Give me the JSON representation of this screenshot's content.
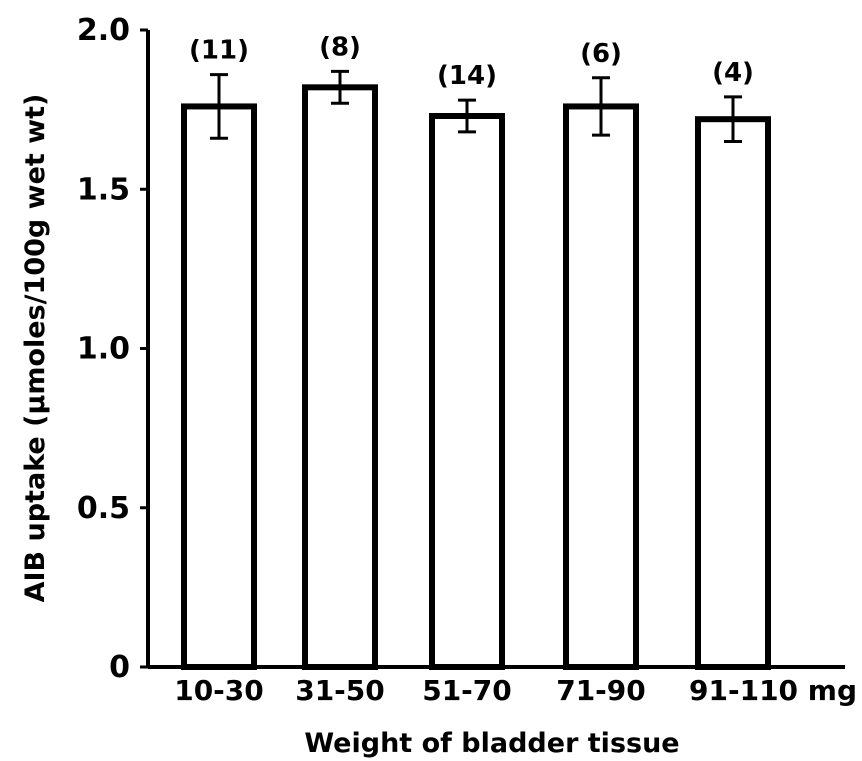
{
  "chart_data": {
    "type": "bar",
    "categories": [
      "10-30",
      "31-50",
      "51-70",
      "71-90",
      "91-110 mg"
    ],
    "series": [
      {
        "values": [
          1.76,
          1.82,
          1.73,
          1.76,
          1.72
        ],
        "error": [
          0.1,
          0.05,
          0.05,
          0.09,
          0.07
        ],
        "n_labels": [
          "(11)",
          "(8)",
          "(14)",
          "(6)",
          "(4)"
        ]
      }
    ],
    "xlabel": "Weight of bladder tissue",
    "ylabel": "AIB uptake (μmoles/100g wet wt)",
    "ylim": [
      0,
      2.0
    ],
    "yticks": [
      0,
      0.5,
      1.0,
      1.5,
      2.0
    ],
    "ytick_labels": [
      "0",
      "0.5",
      "1.0",
      "1.5",
      "2.0"
    ],
    "grid": false,
    "colors": {
      "bar_fill": "#ffffff",
      "stroke": "#000000"
    }
  }
}
